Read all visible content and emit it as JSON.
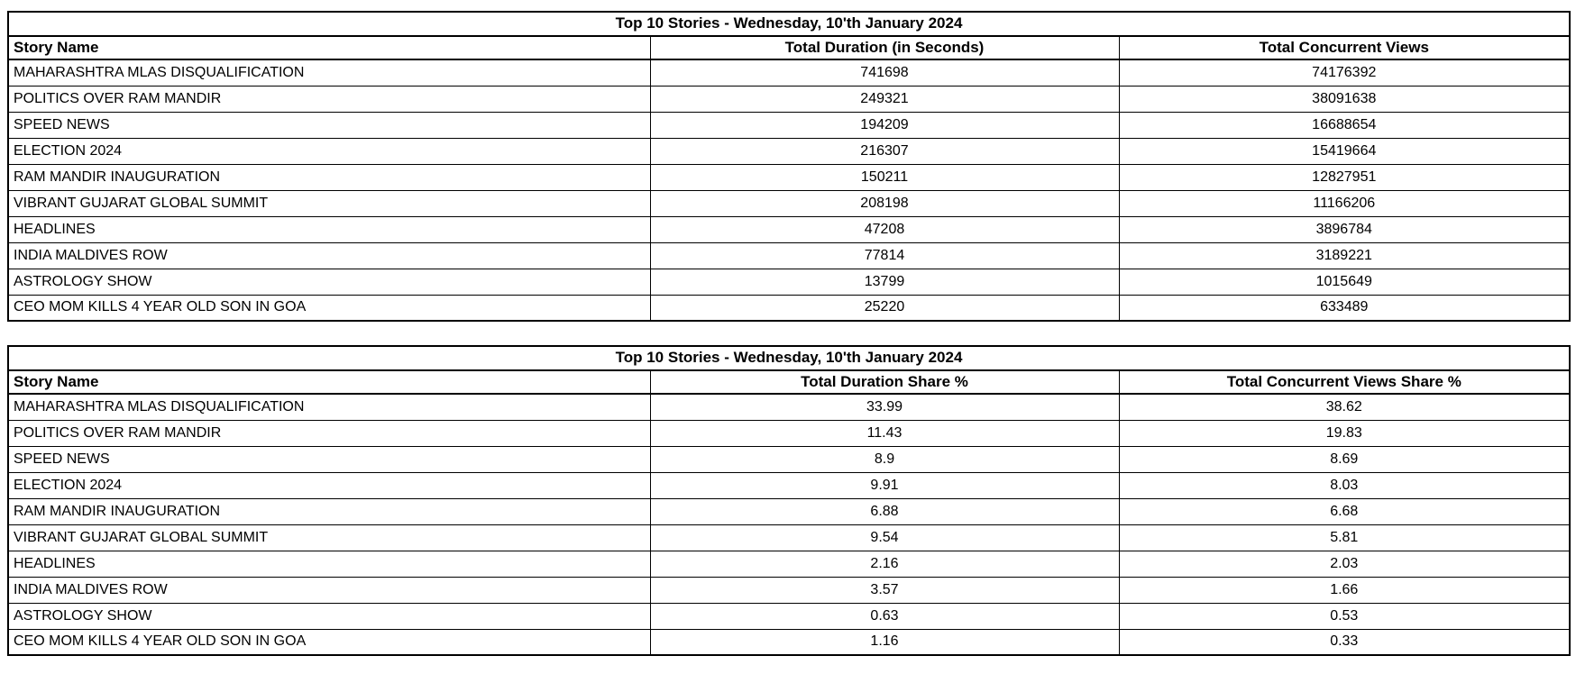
{
  "colors": {
    "background": "#ffffff",
    "text": "#000000",
    "border": "#000000"
  },
  "chart_data": [
    {
      "type": "table",
      "title": "Top 10 Stories - Wednesday, 10'th January 2024",
      "columns": [
        "Story Name",
        "Total Duration (in Seconds)",
        "Total Concurrent Views"
      ],
      "rows": [
        [
          "MAHARASHTRA MLAS DISQUALIFICATION",
          "741698",
          "74176392"
        ],
        [
          "POLITICS OVER RAM MANDIR",
          "249321",
          "38091638"
        ],
        [
          "SPEED NEWS",
          "194209",
          "16688654"
        ],
        [
          "ELECTION 2024",
          "216307",
          "15419664"
        ],
        [
          "RAM MANDIR INAUGURATION",
          "150211",
          "12827951"
        ],
        [
          "VIBRANT GUJARAT GLOBAL SUMMIT",
          "208198",
          "11166206"
        ],
        [
          "HEADLINES",
          "47208",
          "3896784"
        ],
        [
          "INDIA MALDIVES ROW",
          "77814",
          "3189221"
        ],
        [
          "ASTROLOGY SHOW",
          "13799",
          "1015649"
        ],
        [
          "CEO MOM KILLS 4 YEAR OLD SON IN GOA",
          "25220",
          "633489"
        ]
      ]
    },
    {
      "type": "table",
      "title": "Top 10 Stories - Wednesday, 10'th January 2024",
      "columns": [
        "Story Name",
        "Total Duration Share %",
        "Total Concurrent Views Share %"
      ],
      "rows": [
        [
          "MAHARASHTRA MLAS DISQUALIFICATION",
          "33.99",
          "38.62"
        ],
        [
          "POLITICS OVER RAM MANDIR",
          "11.43",
          "19.83"
        ],
        [
          "SPEED NEWS",
          "8.9",
          "8.69"
        ],
        [
          "ELECTION 2024",
          "9.91",
          "8.03"
        ],
        [
          "RAM MANDIR INAUGURATION",
          "6.88",
          "6.68"
        ],
        [
          "VIBRANT GUJARAT GLOBAL SUMMIT",
          "9.54",
          "5.81"
        ],
        [
          "HEADLINES",
          "2.16",
          "2.03"
        ],
        [
          "INDIA MALDIVES ROW",
          "3.57",
          "1.66"
        ],
        [
          "ASTROLOGY SHOW",
          "0.63",
          "0.53"
        ],
        [
          "CEO MOM KILLS 4 YEAR OLD SON IN GOA",
          "1.16",
          "0.33"
        ]
      ]
    }
  ]
}
